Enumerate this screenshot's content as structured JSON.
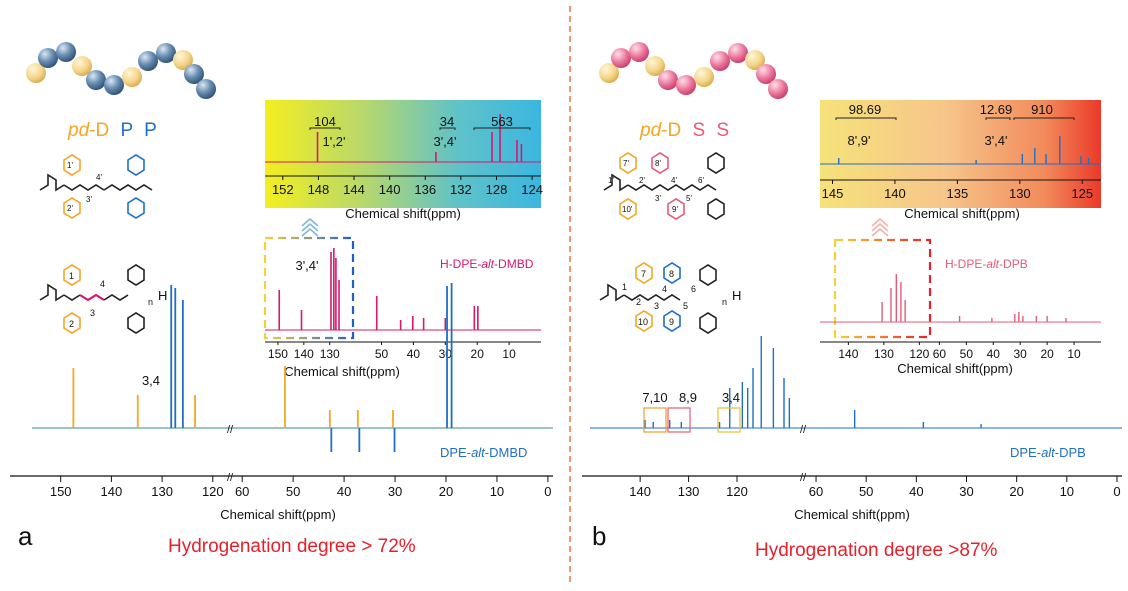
{
  "colors": {
    "orange": "#f5a623",
    "blue": "#1f6fc6",
    "magenta": "#d6186e",
    "pink": "#e85a78",
    "red": "#e8202a",
    "divider": "#f07040"
  },
  "panels": [
    {
      "id": "a",
      "letter": "a",
      "hydrogenation": "Hydrogenation degree > 72%",
      "chain_label": {
        "pd": "pd",
        "d": "-D",
        "m1": "P",
        "m2": "P"
      },
      "structure_labels": [
        "1'",
        "2'",
        "3'",
        "4'",
        "1",
        "2",
        "3",
        "4",
        "n",
        "H"
      ],
      "main_spectrum": {
        "xlabel": "Chemical shift(ppm)",
        "series_name": "DPE-alt-DMBD",
        "peak_label": "3,4",
        "ticks_left": [
          "150",
          "140",
          "130",
          "120"
        ],
        "ticks_right": [
          "60",
          "50",
          "40",
          "30",
          "20",
          "10",
          "0"
        ]
      },
      "mid_spectrum": {
        "xlabel": "Chemical shift(ppm)",
        "series_name": "H-DPE-alt-DMBD",
        "peak_label": "3',4'",
        "ticks_left": [
          "150",
          "140",
          "130",
          "120"
        ],
        "ticks_right": [
          "50",
          "40",
          "30",
          "20",
          "10"
        ]
      },
      "inset": {
        "xlabel": "Chemical shift(ppm)",
        "ticks": [
          "152",
          "148",
          "144",
          "140",
          "136",
          "132",
          "128",
          "124"
        ],
        "peak_labels": [
          "1',2'",
          "3',4'"
        ],
        "integrals": [
          "104",
          "34",
          "563"
        ]
      }
    },
    {
      "id": "b",
      "letter": "b",
      "hydrogenation": "Hydrogenation degree >87%",
      "chain_label": {
        "pd": "pd",
        "d": "-D",
        "m1": "S",
        "m2": "S"
      },
      "structure_labels": [
        "7'",
        "8'",
        "1'",
        "2'",
        "4'",
        "6'",
        "3'",
        "5'",
        "10'",
        "9'",
        "7",
        "8",
        "1",
        "2",
        "4",
        "6",
        "3",
        "5",
        "10",
        "9",
        "n",
        "H"
      ],
      "main_spectrum": {
        "xlabel": "Chemical shift(ppm)",
        "series_name": "DPE-alt-DPB",
        "peak_labels": [
          "7,10",
          "8,9",
          "3,4"
        ],
        "ticks_left": [
          "140",
          "130",
          "120"
        ],
        "ticks_right": [
          "60",
          "50",
          "40",
          "30",
          "20",
          "10",
          "0"
        ]
      },
      "mid_spectrum": {
        "xlabel": "Chemical shift(ppm)",
        "series_name": "H-DPE-alt-DPB",
        "ticks": [
          "140",
          "130",
          "120",
          "60",
          "50",
          "40",
          "30",
          "20",
          "10"
        ]
      },
      "inset": {
        "xlabel": "Chemical shift(ppm)",
        "ticks": [
          "145",
          "140",
          "135",
          "130",
          "125"
        ],
        "peak_labels": [
          "8',9'",
          "3',4'"
        ],
        "integrals": [
          "98.69",
          "12.69",
          "910"
        ]
      }
    }
  ],
  "chart_data": [
    {
      "type": "line",
      "panel": "a",
      "xlabel": "Chemical shift(ppm)",
      "x_reversed": true,
      "series": [
        {
          "name": "DPE-alt-DMBD",
          "peaks_ppm": [
            147.5,
            134.8,
            128.2,
            127.4,
            125.9,
            123.5,
            51.6,
            42.8,
            37.3,
            30.4,
            19.8,
            18.9
          ],
          "dept_negative_ppm": [
            42.8,
            37.3,
            30.4
          ]
        },
        {
          "name": "H-DPE-alt-DMBD",
          "peaks_ppm": [
            149.5,
            140.9,
            129.5,
            128.4,
            127.6,
            126.4,
            51.5,
            44.0,
            40.2,
            36.8,
            30.0,
            20.9,
            19.8
          ]
        }
      ],
      "inset": {
        "xlim": [
          152,
          124
        ],
        "peaks_ppm": [
          148.1,
          134.8,
          128.5,
          127.6,
          125.7,
          125.2
        ],
        "integrals": [
          104,
          34,
          563
        ]
      }
    },
    {
      "type": "line",
      "panel": "b",
      "xlabel": "Chemical shift(ppm)",
      "x_reversed": true,
      "series": [
        {
          "name": "DPE-alt-DPB",
          "peaks_ppm": [
            139.0,
            137.3,
            133.9,
            131.5,
            123.6,
            121.5,
            118.9,
            117.8,
            116.7,
            115.0,
            112.5,
            110.3,
            109.2,
            52.3,
            38.6,
            27.1
          ]
        },
        {
          "name": "H-DPE-alt-DPB",
          "peaks_ppm": [
            130.5,
            128.0,
            126.5,
            125.2,
            124.0,
            52.5,
            40.5,
            32.0,
            30.5,
            29.0,
            24.0,
            20.0,
            13.0
          ]
        }
      ],
      "inset": {
        "xlim": [
          146,
          123.5
        ],
        "peaks_ppm": [
          144.5,
          133.5,
          129.8,
          128.8,
          127.9,
          126.8,
          125.1,
          124.5
        ],
        "integrals": [
          98.69,
          12.69,
          910
        ]
      }
    }
  ]
}
